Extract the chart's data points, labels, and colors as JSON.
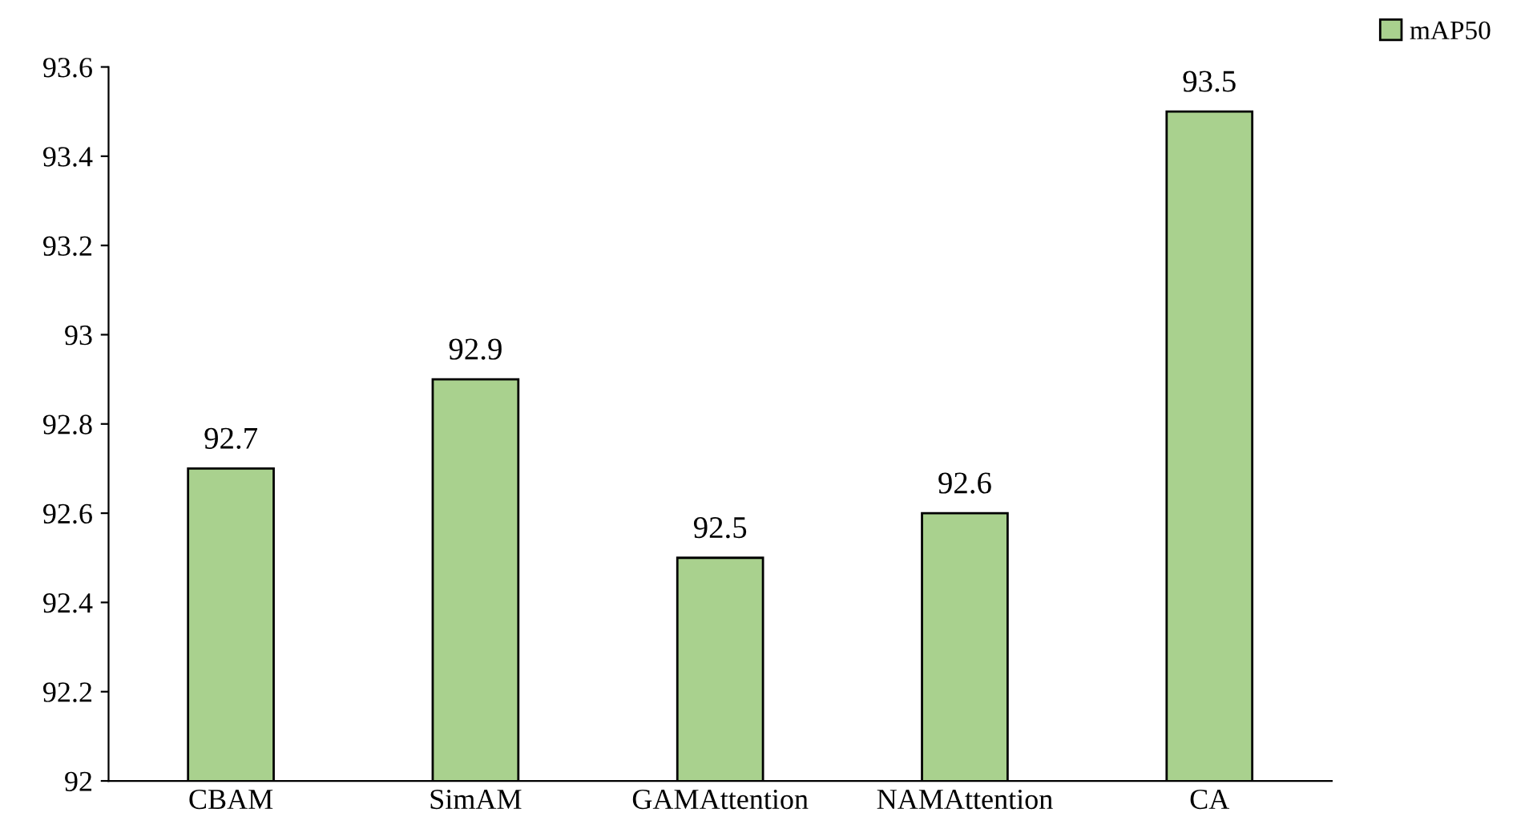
{
  "chart_data": {
    "type": "bar",
    "categories": [
      "CBAM",
      "SimAM",
      "GAMAttention",
      "NAMAttention",
      "CA"
    ],
    "series": [
      {
        "name": "mAP50",
        "color": "#a9d18e",
        "values": [
          92.7,
          92.9,
          92.5,
          92.6,
          93.5
        ]
      }
    ],
    "ylim": [
      92,
      93.6
    ],
    "yticks": [
      92,
      92.2,
      92.4,
      92.6,
      92.8,
      93,
      93.2,
      93.4,
      93.6
    ],
    "data_labels": true,
    "grid": false,
    "legend": "top right"
  }
}
